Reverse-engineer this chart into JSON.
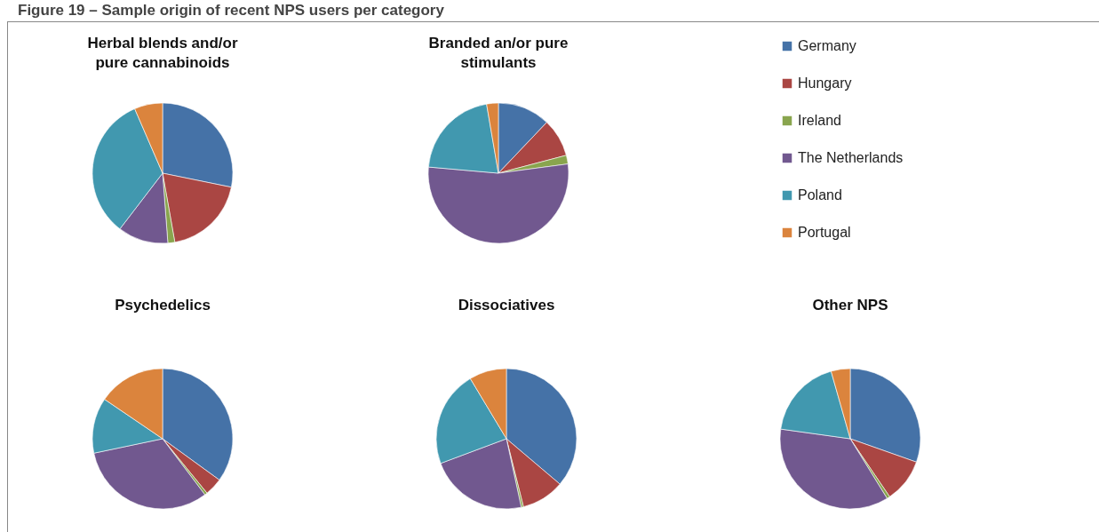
{
  "chart_data": [
    {
      "type": "pie",
      "title": "Herbal blends and/or pure cannabinoids",
      "legend": "right",
      "annotations": [
        "Figure 19 – Sample origin of recent NPS users per category"
      ],
      "categories": [
        "Germany",
        "Hungary",
        "Ireland",
        "The Netherlands",
        "Poland",
        "Portugal"
      ],
      "values": [
        28.2,
        19.0,
        1.6,
        11.6,
        33.1,
        6.5
      ],
      "colors": [
        "#4572a7",
        "#aa4643",
        "#89a54e",
        "#71588f",
        "#4198af",
        "#db843d"
      ]
    },
    {
      "type": "pie",
      "title": "Branded an/or pure stimulants",
      "categories": [
        null,
        null,
        null,
        null,
        null,
        null
      ],
      "values": [
        12.1,
        8.8,
        2.0,
        53.5,
        20.9,
        2.7
      ],
      "colors": [
        "#4572a7",
        "#aa4643",
        "#89a54e",
        "#71588f",
        "#4198af",
        "#db843d"
      ]
    },
    {
      "type": "pie",
      "title": "Psychedelics",
      "categories": [
        null,
        null,
        null,
        null,
        null,
        null
      ],
      "values": [
        35.0,
        4.1,
        0.6,
        32.0,
        12.8,
        15.5
      ],
      "colors": [
        "#4572a7",
        "#aa4643",
        "#89a54e",
        "#71588f",
        "#4198af",
        "#db843d"
      ]
    },
    {
      "type": "pie",
      "title": "Dissociatives",
      "categories": [
        null,
        null,
        null,
        null,
        null,
        null
      ],
      "values": [
        36.2,
        9.9,
        0.5,
        22.7,
        22.1,
        8.6
      ],
      "colors": [
        "#4572a7",
        "#aa4643",
        "#89a54e",
        "#71588f",
        "#4198af",
        "#db843d"
      ]
    },
    {
      "type": "pie",
      "title": "Other NPS",
      "categories": [
        null,
        null,
        null,
        null,
        null,
        null
      ],
      "values": [
        30.4,
        10.1,
        0.7,
        36.0,
        18.4,
        4.4
      ],
      "colors": [
        "#4572a7",
        "#aa4643",
        "#89a54e",
        "#71588f",
        "#4198af",
        "#db843d"
      ]
    }
  ]
}
